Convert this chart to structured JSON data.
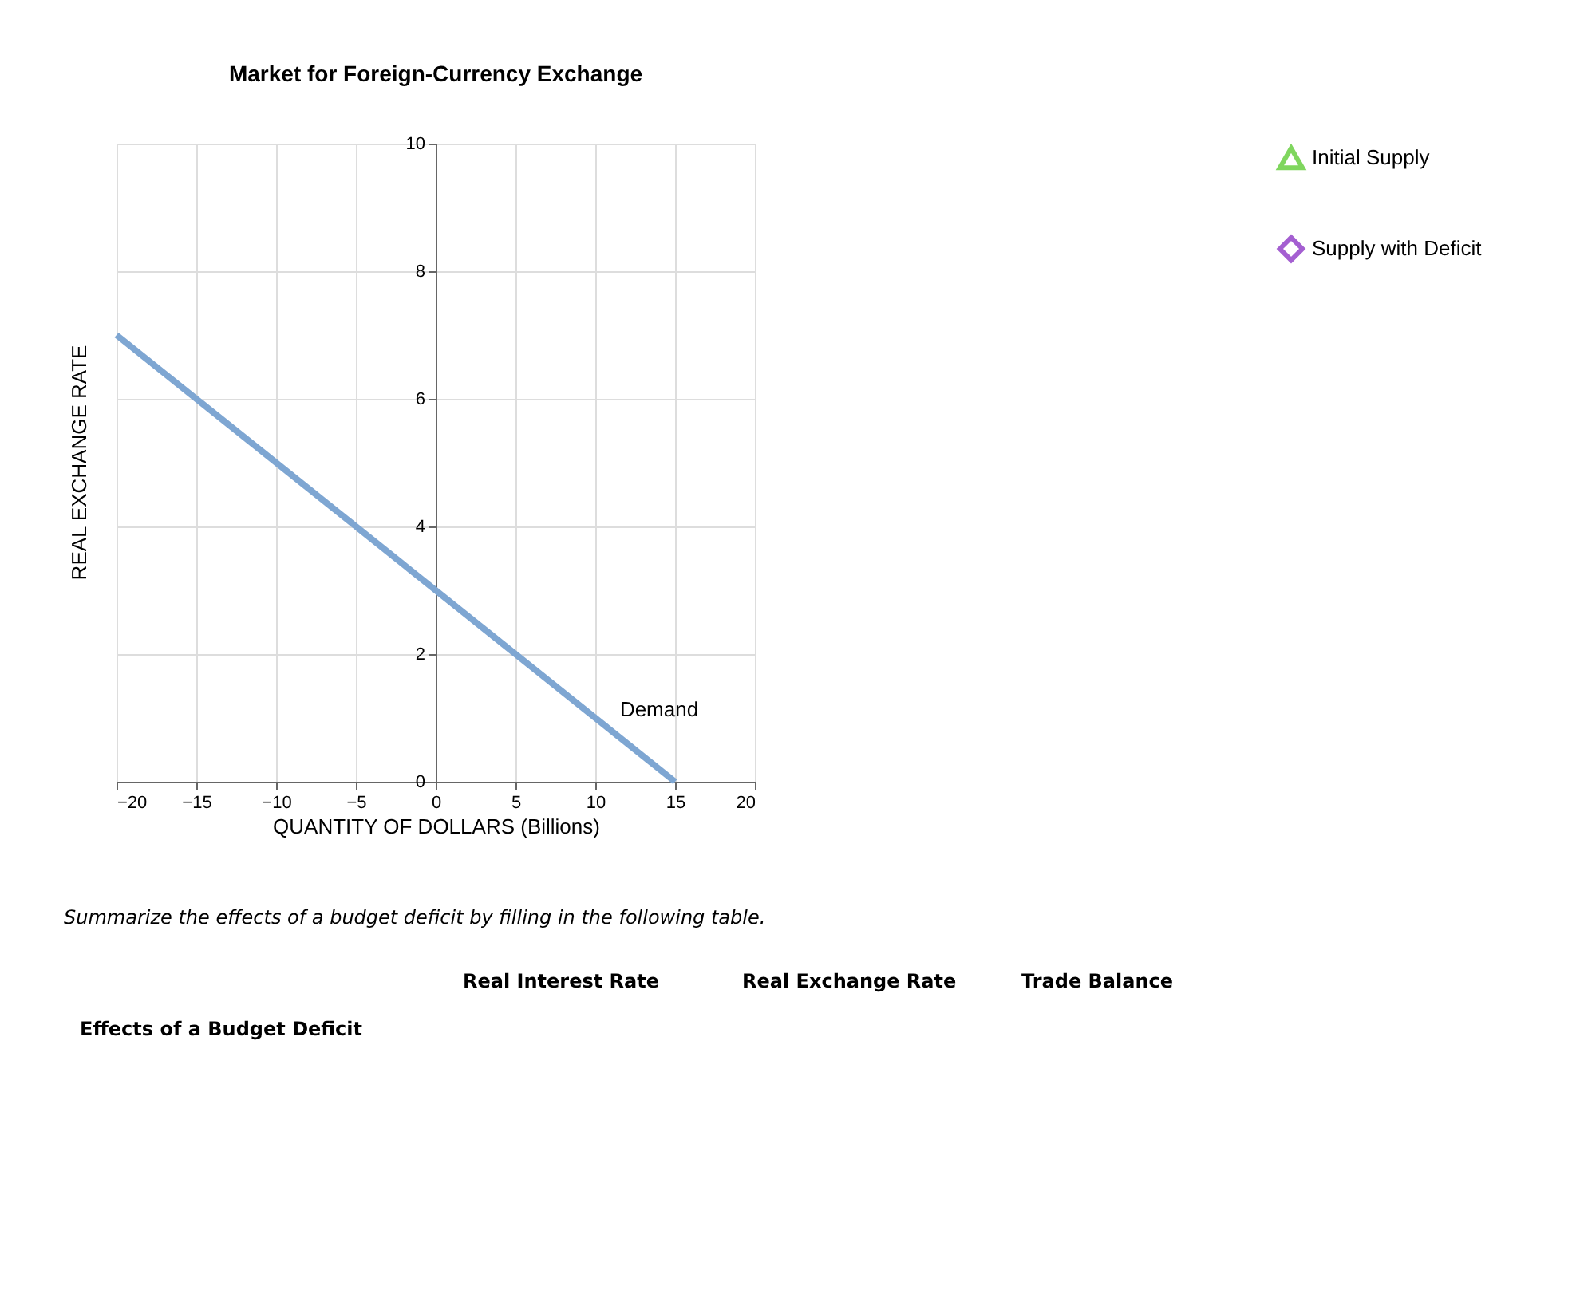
{
  "chart_data": {
    "type": "line",
    "title": "Market for Foreign-Currency Exchange",
    "xlabel": "QUANTITY OF DOLLARS (Billions)",
    "ylabel": "REAL EXCHANGE RATE",
    "xlim": [
      -20,
      20
    ],
    "xticks": [
      -20,
      -15,
      -10,
      -5,
      0,
      5,
      10,
      15,
      20
    ],
    "ylim": [
      0,
      10
    ],
    "yticks": [
      0,
      2,
      4,
      6,
      8,
      10
    ],
    "grid": true,
    "legend": "right",
    "line_style": "solid",
    "series": [
      {
        "name": "Demand",
        "color": "#7ea6d2",
        "marker": "none",
        "x": [
          -20,
          15
        ],
        "values": [
          7,
          0
        ]
      },
      {
        "name": "Initial Supply",
        "color": "#7fd65e",
        "marker": "triangle"
      },
      {
        "name": "Supply with Deficit",
        "color": "#a45fd1",
        "marker": "diamond"
      }
    ],
    "annotations": [
      "Summarize the effects of a budget deficit by filling in the following table.",
      "Real Interest Rate",
      "Real Exchange Rate",
      "Trade Balance",
      "Effects of a Budget Deficit"
    ]
  }
}
